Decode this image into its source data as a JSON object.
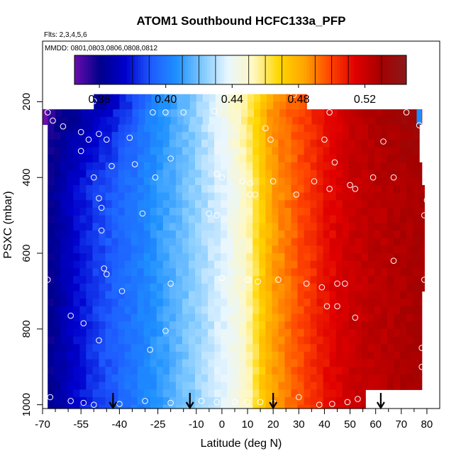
{
  "chart_data": {
    "type": "heatmap",
    "title": "ATOM1 Southbound HCFC133a_PFP",
    "flights_note": "Flts: 2,3,4,5,6",
    "dates_note": "MMDD: 0801,0803,0806,0808,0812",
    "xlabel": "Latitude (deg N)",
    "ylabel": "PSXC (mbar)",
    "xlim": [
      -70,
      85
    ],
    "ylim": [
      1010,
      40
    ],
    "x_tick_labels": [
      "-70",
      "-55",
      "-40",
      "-25",
      "-10",
      "0",
      "10",
      "20",
      "30",
      "40",
      "50",
      "60",
      "70",
      "80"
    ],
    "x_tick_values": [
      -70,
      -55,
      -40,
      -25,
      -10,
      0,
      10,
      20,
      30,
      40,
      50,
      60,
      70,
      80
    ],
    "x_minor_ticks": [
      -65,
      -60,
      -50,
      -45,
      -35,
      -30,
      -20,
      -15,
      -5,
      5,
      15,
      25,
      35,
      45,
      55,
      65,
      75
    ],
    "y_tick_labels": [
      "200",
      "400",
      "600",
      "800",
      "1000"
    ],
    "y_tick_values": [
      200,
      400,
      600,
      800,
      1000
    ],
    "colorbar": {
      "min": 0.345,
      "max": 0.545,
      "tick_labels": [
        "0.36",
        "0.40",
        "0.44",
        "0.48",
        "0.52"
      ],
      "tick_values": [
        0.36,
        0.4,
        0.44,
        0.48,
        0.52
      ],
      "segment_edges": [
        0.38,
        0.39,
        0.41,
        0.42,
        0.43,
        0.45,
        0.46,
        0.47,
        0.49,
        0.5,
        0.51,
        0.53
      ],
      "palette": [
        "#6a0dad",
        "#00008b",
        "#0000cd",
        "#1e5bff",
        "#1e90ff",
        "#7ec8ff",
        "#e8f6ff",
        "#fff8c0",
        "#ffd700",
        "#ffa500",
        "#ff4500",
        "#e00000",
        "#a50000",
        "#8b1a1a"
      ]
    },
    "field": {
      "anchor_lat": [
        -70,
        -60,
        -50,
        -40,
        -30,
        -20,
        -10,
        0,
        5,
        10,
        15,
        20,
        30,
        40,
        50,
        60,
        70,
        80
      ],
      "anchor_value": [
        0.355,
        0.372,
        0.385,
        0.394,
        0.403,
        0.414,
        0.425,
        0.436,
        0.443,
        0.452,
        0.47,
        0.484,
        0.497,
        0.51,
        0.52,
        0.524,
        0.527,
        0.53
      ],
      "upper_anchor_value": [
        0.352,
        0.36,
        0.37,
        0.382,
        0.398,
        0.412,
        0.424,
        0.44,
        0.45,
        0.46,
        0.475,
        0.488,
        0.498,
        0.51,
        0.522,
        0.528,
        0.532,
        0.535
      ],
      "top_band_value": [
        0.345,
        0.35,
        0.362,
        0.378,
        0.395,
        0.41,
        0.425,
        0.44,
        0.45,
        0.458,
        0.47,
        0.484,
        0.497,
        0.505,
        0.515,
        0.52,
        0.525,
        0.53
      ],
      "domain_rows": [
        {
          "p_top": 180,
          "p_bot": 220,
          "lat_min": -50,
          "lat_max": 33
        },
        {
          "p_top": 220,
          "p_bot": 260,
          "lat_min": -70,
          "lat_max": 78
        },
        {
          "p_top": 260,
          "p_bot": 300,
          "lat_min": -68,
          "lat_max": 77
        },
        {
          "p_top": 300,
          "p_bot": 360,
          "lat_min": -68,
          "lat_max": 77
        },
        {
          "p_top": 360,
          "p_bot": 420,
          "lat_min": -68,
          "lat_max": 78
        },
        {
          "p_top": 420,
          "p_bot": 700,
          "lat_min": -68,
          "lat_max": 79
        },
        {
          "p_top": 700,
          "p_bot": 960,
          "lat_min": -68,
          "lat_max": 78
        },
        {
          "p_top": 960,
          "p_bot": 1010,
          "lat_min": -68,
          "lat_max": 56
        }
      ],
      "purple_corner": {
        "p_top": 220,
        "p_bot": 260,
        "lat_min": -70,
        "lat_max": -68
      },
      "cyan_edge": {
        "p_top": 220,
        "p_bot": 260,
        "lat_min": 76,
        "lat_max": 78
      }
    },
    "sample_points": [
      [
        -50,
        198
      ],
      [
        -27,
        228
      ],
      [
        -22,
        228
      ],
      [
        -15,
        228
      ],
      [
        -3,
        225
      ],
      [
        28,
        182
      ],
      [
        42,
        228
      ],
      [
        72,
        228
      ],
      [
        -68,
        228
      ],
      [
        -66,
        250
      ],
      [
        -62,
        265
      ],
      [
        -55,
        280
      ],
      [
        -48,
        285
      ],
      [
        -52,
        300
      ],
      [
        -45,
        300
      ],
      [
        -36,
        295
      ],
      [
        19,
        300
      ],
      [
        40,
        300
      ],
      [
        63,
        305
      ],
      [
        77,
        262
      ],
      [
        17,
        270
      ],
      [
        -55,
        330
      ],
      [
        -43,
        370
      ],
      [
        -34,
        365
      ],
      [
        -20,
        350
      ],
      [
        -26,
        400
      ],
      [
        -50,
        400
      ],
      [
        -2,
        390
      ],
      [
        0,
        400
      ],
      [
        8,
        410
      ],
      [
        11,
        415
      ],
      [
        20,
        410
      ],
      [
        36,
        410
      ],
      [
        44,
        360
      ],
      [
        50,
        420
      ],
      [
        59,
        400
      ],
      [
        67,
        400
      ],
      [
        -48,
        455
      ],
      [
        -47,
        480
      ],
      [
        -31,
        495
      ],
      [
        -5,
        495
      ],
      [
        -2,
        500
      ],
      [
        11,
        445
      ],
      [
        13,
        445
      ],
      [
        29,
        445
      ],
      [
        42,
        430
      ],
      [
        52,
        430
      ],
      [
        80,
        460
      ],
      [
        79,
        500
      ],
      [
        -47,
        540
      ],
      [
        -46,
        640
      ],
      [
        -45,
        655
      ],
      [
        -39,
        700
      ],
      [
        -20,
        680
      ],
      [
        0,
        665
      ],
      [
        10,
        670
      ],
      [
        14,
        675
      ],
      [
        22,
        670
      ],
      [
        33,
        680
      ],
      [
        39,
        690
      ],
      [
        45,
        680
      ],
      [
        48,
        680
      ],
      [
        67,
        620
      ],
      [
        79,
        670
      ],
      [
        -68,
        670
      ],
      [
        -59,
        765
      ],
      [
        -54,
        785
      ],
      [
        -48,
        830
      ],
      [
        -22,
        805
      ],
      [
        -28,
        855
      ],
      [
        41,
        740
      ],
      [
        45,
        740
      ],
      [
        52,
        770
      ],
      [
        78,
        850
      ],
      [
        78,
        900
      ],
      [
        -67,
        980
      ],
      [
        -59,
        990
      ],
      [
        -54,
        995
      ],
      [
        -50,
        1000
      ],
      [
        -40,
        998
      ],
      [
        -30,
        990
      ],
      [
        -20,
        995
      ],
      [
        -8,
        990
      ],
      [
        -2,
        993
      ],
      [
        5,
        993
      ],
      [
        10,
        993
      ],
      [
        15,
        993
      ],
      [
        20,
        995
      ],
      [
        30,
        980
      ],
      [
        38,
        1000
      ],
      [
        43,
        998
      ],
      [
        49,
        993
      ],
      [
        53,
        985
      ],
      [
        58,
        995
      ]
    ],
    "arrow_latitudes": [
      -42.5,
      -12.5,
      20,
      62
    ]
  }
}
